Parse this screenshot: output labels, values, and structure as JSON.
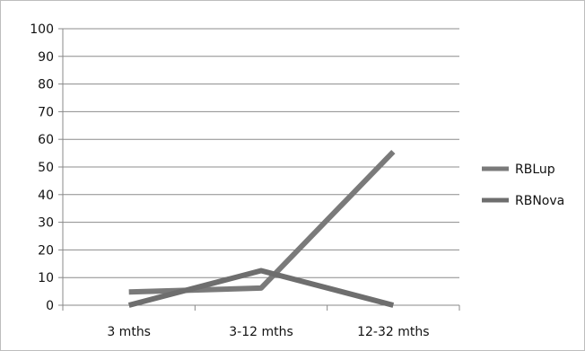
{
  "chart_data": {
    "type": "line",
    "categories": [
      "3 mths",
      "3-12 mths",
      "12-32 mths"
    ],
    "series": [
      {
        "name": "RBLup",
        "values": [
          4.8,
          6.2,
          55.5
        ],
        "color": "#7a7a7a"
      },
      {
        "name": "RBNova",
        "values": [
          0,
          12.5,
          0
        ],
        "color": "#6e6e6e"
      }
    ],
    "yticks": [
      0,
      10,
      20,
      30,
      40,
      50,
      60,
      70,
      80,
      90,
      100
    ],
    "ylim": [
      0,
      100
    ],
    "grid": true,
    "legend_position": "right",
    "title": "",
    "xlabel": "",
    "ylabel": ""
  }
}
